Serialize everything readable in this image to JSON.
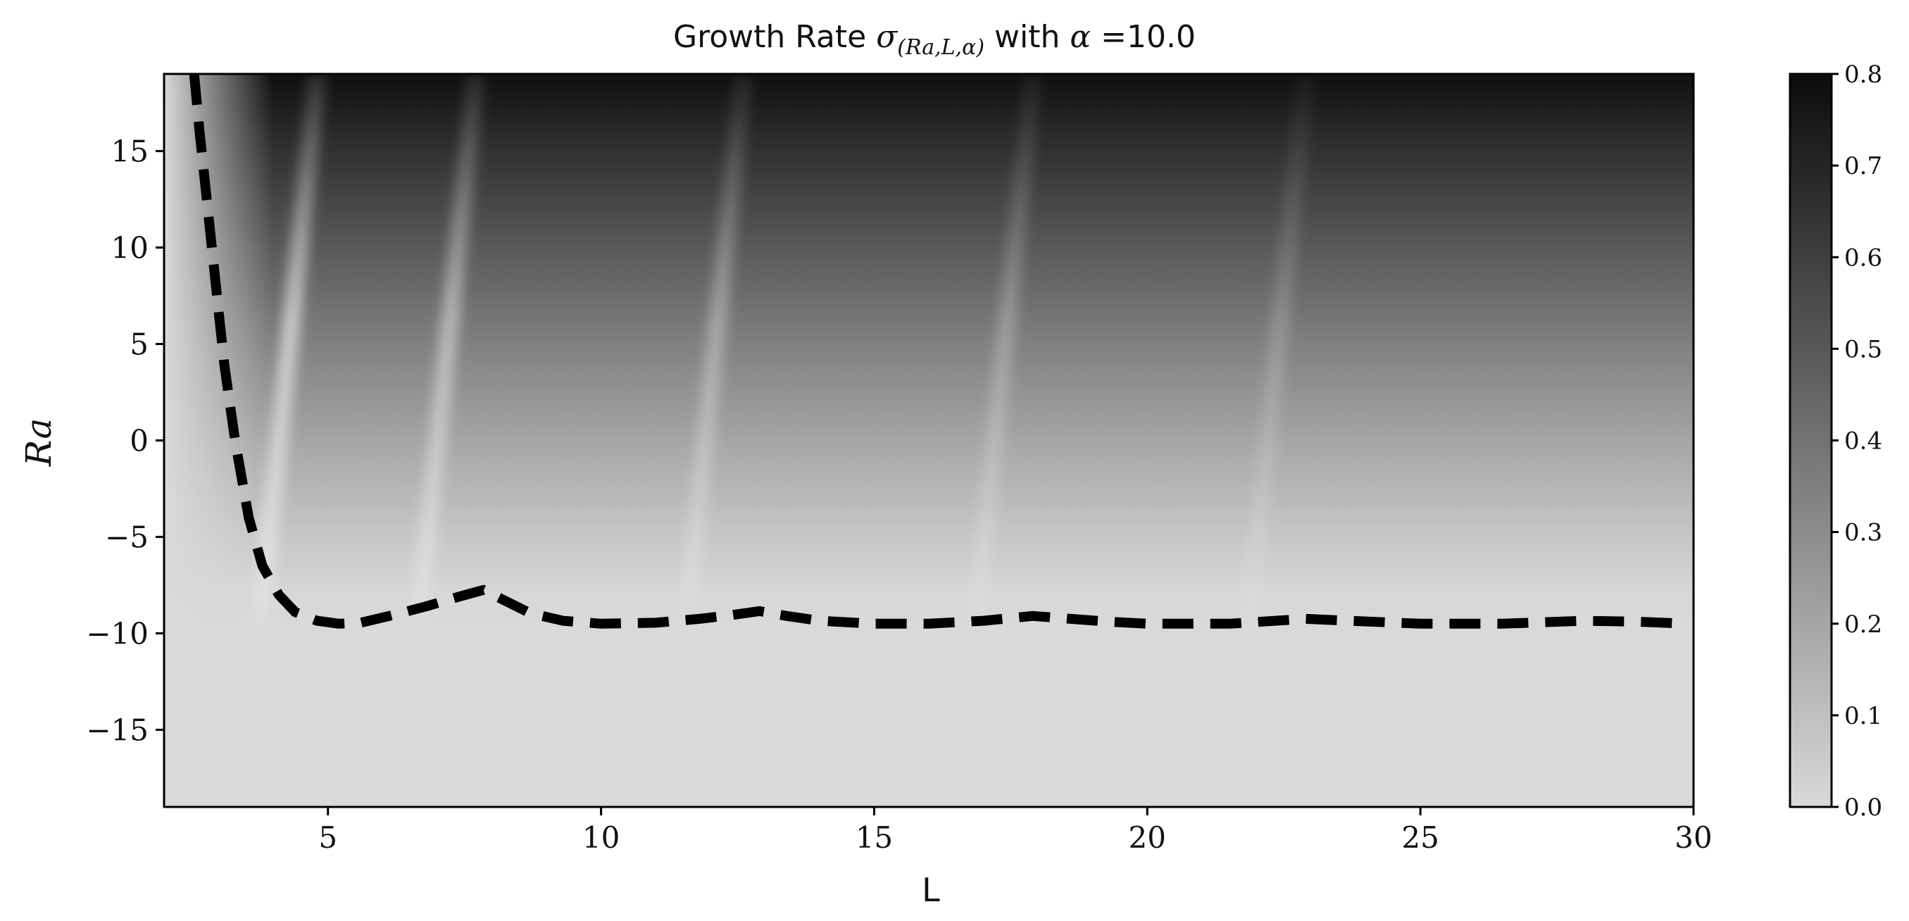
{
  "chart_data": {
    "type": "heatmap",
    "title": {
      "prefix": "Growth Rate ",
      "sigma": "σ",
      "subscript": "(Ra,L,α)",
      "middle": " with ",
      "alpha": "α",
      "suffix": " =10.0"
    },
    "xlabel": "L",
    "ylabel": "Ra",
    "xlim": [
      2,
      30
    ],
    "ylim": [
      -19,
      19
    ],
    "x_ticks": [
      5,
      10,
      15,
      20,
      25,
      30
    ],
    "x_tick_labels": [
      "5",
      "10",
      "15",
      "20",
      "25",
      "30"
    ],
    "y_ticks": [
      15,
      10,
      5,
      0,
      -5,
      -10,
      -15
    ],
    "y_tick_labels": [
      "15",
      "10",
      "5",
      "0",
      "−5",
      "−10",
      "−15"
    ],
    "colorbar": {
      "cmap": "gray_r",
      "min": 0.0,
      "max": 0.8,
      "ticks": [
        0.0,
        0.1,
        0.2,
        0.3,
        0.4,
        0.5,
        0.6,
        0.7,
        0.8
      ],
      "tick_labels": [
        "0.0",
        "0.1",
        "0.2",
        "0.3",
        "0.4",
        "0.5",
        "0.6",
        "0.7",
        "0.8"
      ],
      "low_color": "#d9d9d9",
      "high_color": "#0b0b0b"
    },
    "grid": false,
    "neutral_curve": {
      "style": "dashed",
      "color": "#000000",
      "points": [
        [
          2.55,
          19.0
        ],
        [
          2.65,
          16.0
        ],
        [
          2.8,
          12.0
        ],
        [
          2.95,
          8.0
        ],
        [
          3.1,
          4.0
        ],
        [
          3.3,
          0.0
        ],
        [
          3.55,
          -4.0
        ],
        [
          3.8,
          -6.5
        ],
        [
          4.1,
          -8.0
        ],
        [
          4.4,
          -8.9
        ],
        [
          4.8,
          -9.35
        ],
        [
          5.2,
          -9.5
        ],
        [
          5.6,
          -9.45
        ],
        [
          6.2,
          -9.05
        ],
        [
          6.8,
          -8.6
        ],
        [
          7.4,
          -8.1
        ],
        [
          7.85,
          -7.75
        ],
        [
          8.2,
          -8.25
        ],
        [
          8.7,
          -8.95
        ],
        [
          9.3,
          -9.35
        ],
        [
          10.0,
          -9.5
        ],
        [
          11.0,
          -9.45
        ],
        [
          11.8,
          -9.25
        ],
        [
          12.4,
          -9.05
        ],
        [
          12.9,
          -8.85
        ],
        [
          13.4,
          -9.1
        ],
        [
          14.0,
          -9.35
        ],
        [
          15.0,
          -9.5
        ],
        [
          16.0,
          -9.5
        ],
        [
          17.0,
          -9.35
        ],
        [
          17.9,
          -9.1
        ],
        [
          18.6,
          -9.25
        ],
        [
          19.3,
          -9.4
        ],
        [
          20.0,
          -9.5
        ],
        [
          21.5,
          -9.5
        ],
        [
          22.9,
          -9.25
        ],
        [
          23.7,
          -9.35
        ],
        [
          25.0,
          -9.5
        ],
        [
          26.5,
          -9.5
        ],
        [
          28.0,
          -9.35
        ],
        [
          29.0,
          -9.4
        ],
        [
          29.9,
          -9.5
        ]
      ]
    }
  }
}
